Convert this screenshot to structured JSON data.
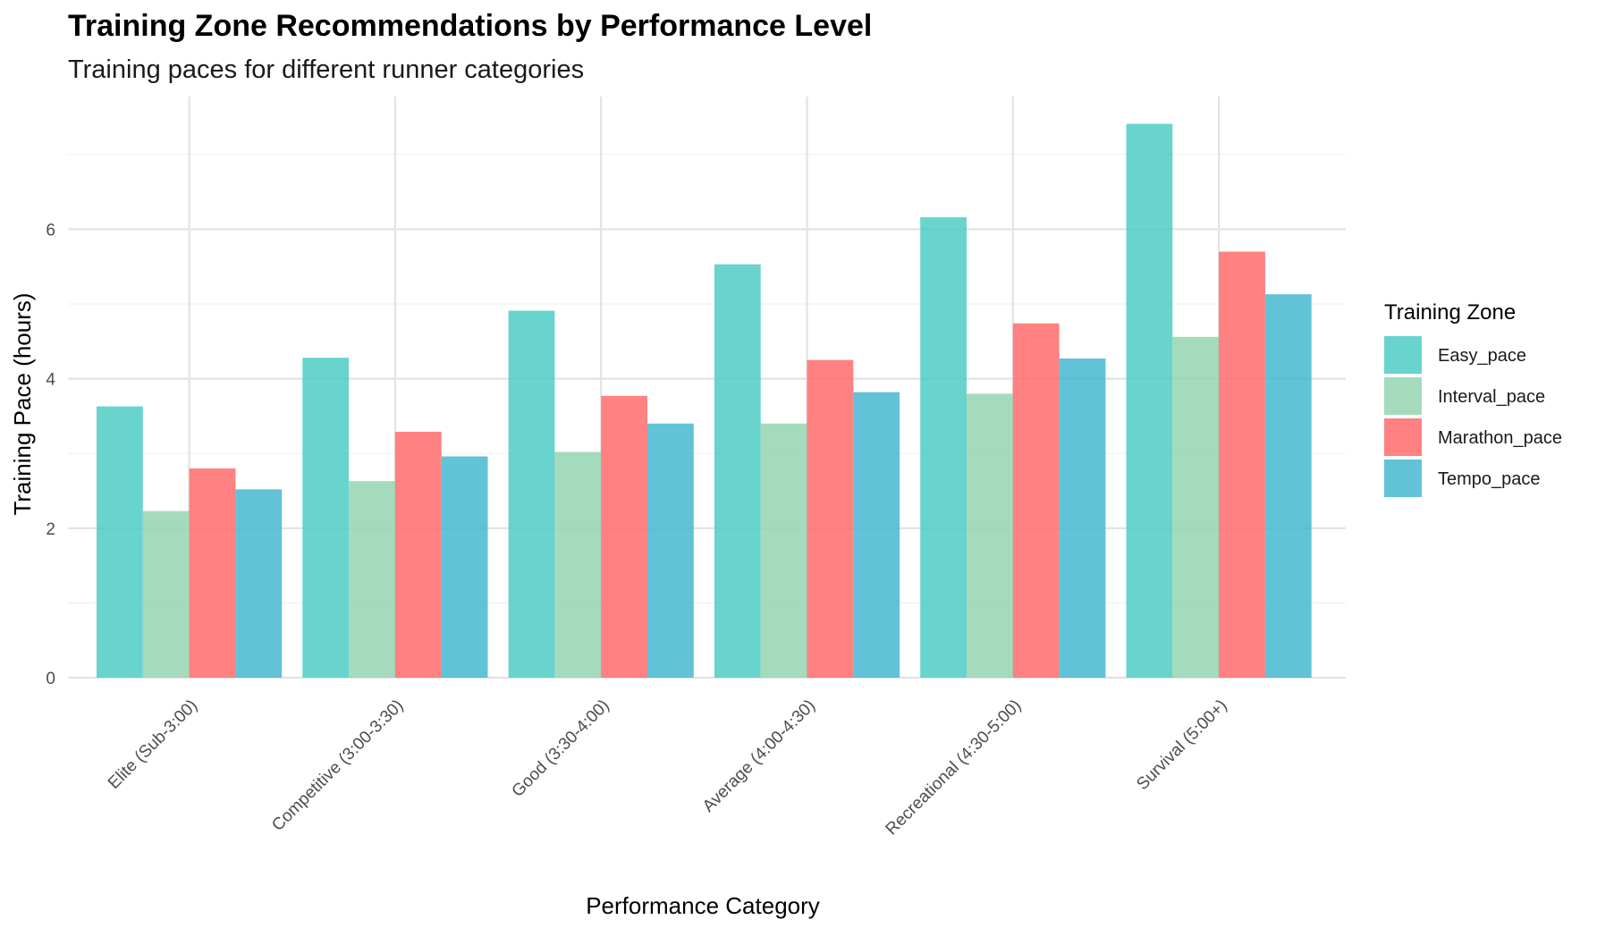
{
  "chart_data": {
    "type": "bar",
    "title": "Training Zone Recommendations by Performance Level",
    "subtitle": "Training paces for different runner categories",
    "xlabel": "Performance Category",
    "ylabel": "Training Pace (hours)",
    "ylim": [
      0,
      7.8
    ],
    "yticks": [
      0,
      2,
      4,
      6
    ],
    "grid": true,
    "legend": {
      "title": "Training Zone",
      "position": "right"
    },
    "categories": [
      "Elite (Sub-3:00)",
      "Competitive (3:00-3:30)",
      "Good (3:30-4:00)",
      "Average (4:00-4:30)",
      "Recreational (4:30-5:00)",
      "Survival (5:00+)"
    ],
    "series": [
      {
        "name": "Easy_pace",
        "color": "#4ECDC4",
        "values": [
          3.63,
          4.28,
          4.91,
          5.53,
          6.16,
          7.41
        ]
      },
      {
        "name": "Interval_pace",
        "color": "#95D5B2",
        "values": [
          2.23,
          2.63,
          3.02,
          3.4,
          3.8,
          4.56
        ]
      },
      {
        "name": "Marathon_pace",
        "color": "#FF6B6B",
        "values": [
          2.8,
          3.29,
          3.77,
          4.25,
          4.74,
          5.7
        ]
      },
      {
        "name": "Tempo_pace",
        "color": "#45B7D1",
        "values": [
          2.52,
          2.96,
          3.4,
          3.82,
          4.27,
          5.13
        ]
      }
    ]
  }
}
